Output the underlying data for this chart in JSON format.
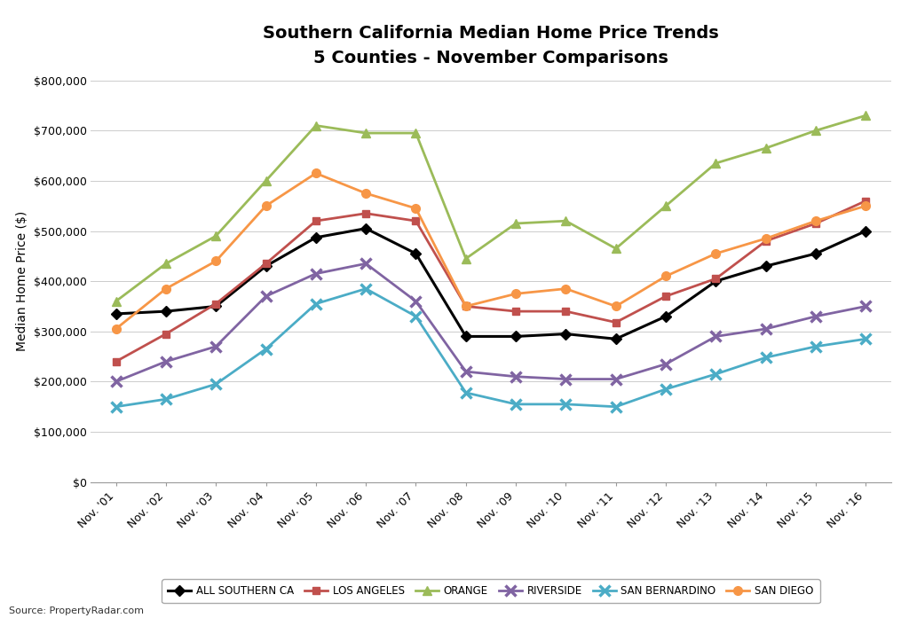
{
  "title_line1": "Southern California Median Home Price Trends",
  "title_line2": "5 Counties - November Comparisons",
  "ylabel": "Median Home Price ($)",
  "source": "Source: PropertyRadar.com",
  "years": [
    "Nov. '01",
    "Nov. '02",
    "Nov. '03",
    "Nov. '04",
    "Nov. '05",
    "Nov. '06",
    "Nov. '07",
    "Nov. '08",
    "Nov. '09",
    "Nov. '10",
    "Nov. '11",
    "Nov. '12",
    "Nov. '13",
    "Nov. '14",
    "Nov. '15",
    "Nov. '16"
  ],
  "series": {
    "ALL SOUTHERN CA": {
      "color": "#000000",
      "marker": "D",
      "markersize": 6,
      "linewidth": 2.2,
      "values": [
        335000,
        340000,
        350000,
        430000,
        487000,
        505000,
        455000,
        290000,
        290000,
        295000,
        285000,
        330000,
        400000,
        430000,
        455000,
        500000
      ]
    },
    "LOS ANGELES": {
      "color": "#c0504d",
      "marker": "s",
      "markersize": 6,
      "linewidth": 2.0,
      "values": [
        240000,
        295000,
        355000,
        435000,
        520000,
        535000,
        520000,
        350000,
        340000,
        340000,
        318000,
        370000,
        405000,
        480000,
        515000,
        560000
      ]
    },
    "ORANGE": {
      "color": "#9bbb59",
      "marker": "^",
      "markersize": 7,
      "linewidth": 2.0,
      "values": [
        360000,
        435000,
        490000,
        600000,
        710000,
        695000,
        695000,
        445000,
        515000,
        520000,
        465000,
        550000,
        635000,
        665000,
        700000,
        730000
      ]
    },
    "RIVERSIDE": {
      "color": "#8064a2",
      "marker": "x",
      "markersize": 8,
      "linewidth": 2.0,
      "values": [
        200000,
        240000,
        270000,
        370000,
        415000,
        435000,
        360000,
        220000,
        210000,
        205000,
        205000,
        235000,
        290000,
        305000,
        330000,
        350000
      ]
    },
    "SAN BERNARDINO": {
      "color": "#4bacc6",
      "marker": "x",
      "markersize": 8,
      "linewidth": 2.0,
      "values": [
        150000,
        165000,
        195000,
        265000,
        355000,
        385000,
        330000,
        178000,
        155000,
        155000,
        150000,
        185000,
        215000,
        248000,
        270000,
        285000
      ]
    },
    "SAN DIEGO": {
      "color": "#f79646",
      "marker": "o",
      "markersize": 7,
      "linewidth": 2.0,
      "values": [
        305000,
        385000,
        440000,
        550000,
        615000,
        575000,
        545000,
        350000,
        375000,
        385000,
        350000,
        410000,
        455000,
        485000,
        520000,
        550000
      ]
    }
  },
  "series_order": [
    "ALL SOUTHERN CA",
    "LOS ANGELES",
    "ORANGE",
    "RIVERSIDE",
    "SAN BERNARDINO",
    "SAN DIEGO"
  ],
  "ylim": [
    0,
    800000
  ],
  "yticks": [
    0,
    100000,
    200000,
    300000,
    400000,
    500000,
    600000,
    700000,
    800000
  ],
  "background_color": "#ffffff",
  "grid_color": "#cccccc",
  "title_fontsize": 14,
  "legend_fontsize": 8.5,
  "tick_fontsize": 9,
  "ylabel_fontsize": 10
}
